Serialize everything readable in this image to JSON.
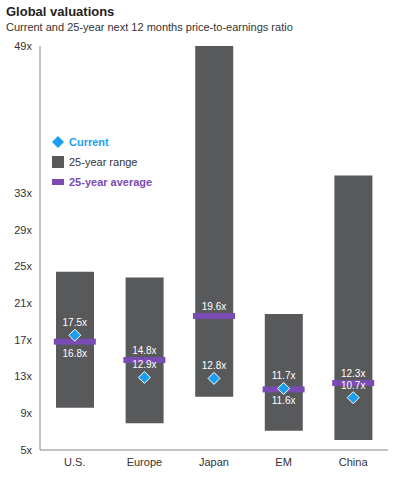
{
  "chart_data": {
    "type": "bar",
    "title": "Global valuations",
    "subtitle": "Current and 25-year next 12 months price-to-earnings ratio",
    "categories": [
      "U.S.",
      "Europe",
      "Japan",
      "EM",
      "China"
    ],
    "series": [
      {
        "name": "25-year range",
        "color": "#58595b",
        "low": [
          9.6,
          7.9,
          10.8,
          7.1,
          6.1
        ],
        "high": [
          24.4,
          23.8,
          49,
          19.8,
          34.9
        ]
      },
      {
        "name": "Current",
        "color": "#1a9ff0",
        "marker": "diamond",
        "values": [
          17.5,
          12.9,
          12.8,
          11.7,
          10.7
        ],
        "value_labels": [
          "17.5x",
          "12.9x",
          "12.8x",
          "11.7x",
          "10.7x"
        ]
      },
      {
        "name": "25-year average",
        "color": "#7a4bb3",
        "marker": "bar",
        "values": [
          16.8,
          14.8,
          19.6,
          11.6,
          12.3
        ],
        "value_labels": [
          "16.8x",
          "14.8x",
          "19.6x",
          "11.6x",
          "12.3x"
        ]
      }
    ],
    "ylim": [
      5,
      49
    ],
    "yticks": [
      {
        "value": 5,
        "label": "5x"
      },
      {
        "value": 9,
        "label": "9x"
      },
      {
        "value": 13,
        "label": "13x"
      },
      {
        "value": 17,
        "label": "17x"
      },
      {
        "value": 21,
        "label": "21x"
      },
      {
        "value": 25,
        "label": "25x"
      },
      {
        "value": 29,
        "label": "29x"
      },
      {
        "value": 33,
        "label": "33x"
      },
      {
        "value": 49,
        "label": "49x"
      }
    ],
    "grid": false,
    "data_labels": true,
    "legend": "top-left"
  }
}
